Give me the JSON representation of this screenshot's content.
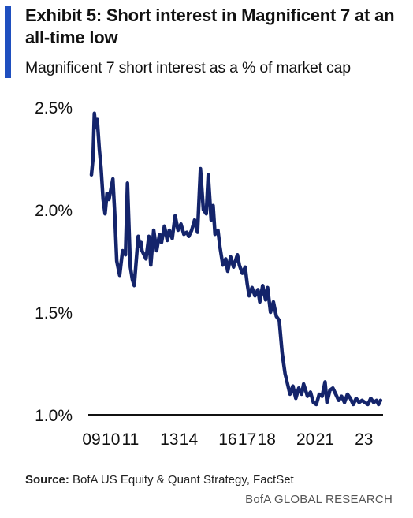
{
  "header": {
    "title": "Exhibit 5: Short interest in Magnificent 7 at an all-time low",
    "subtitle": "Magnificent 7 short interest as a % of market cap"
  },
  "footer": {
    "source_label": "Source:",
    "source_text": "BofA US Equity & Quant Strategy, FactSet",
    "brand": "BofA GLOBAL RESEARCH"
  },
  "colors": {
    "accent": "#1f4fbf",
    "series": "#14246b"
  },
  "chart_data": {
    "type": "line",
    "title": "",
    "xlabel": "",
    "ylabel": "",
    "ylim": [
      1.0,
      2.5
    ],
    "xlim": [
      2009,
      2023.9
    ],
    "grid": false,
    "legend": "none",
    "x_ticks": [
      2009,
      2010,
      2011,
      2013,
      2014,
      2016,
      2017,
      2018,
      2020,
      2021,
      2023
    ],
    "x_tick_labels": [
      "09",
      "10",
      "11",
      "13",
      "14",
      "16",
      "17",
      "18",
      "20",
      "21",
      "23"
    ],
    "y_ticks": [
      1.0,
      1.5,
      2.0,
      2.5
    ],
    "y_tick_labels": [
      "1.0%",
      "1.5%",
      "2.0%",
      "2.5%"
    ],
    "series": [
      {
        "name": "",
        "x": [
          2009.0,
          2009.08,
          2009.15,
          2009.22,
          2009.3,
          2009.4,
          2009.5,
          2009.6,
          2009.7,
          2009.8,
          2009.9,
          2010.0,
          2010.1,
          2010.2,
          2010.3,
          2010.45,
          2010.6,
          2010.75,
          2010.85,
          2011.0,
          2011.1,
          2011.2,
          2011.3,
          2011.4,
          2011.5,
          2011.55,
          2011.6,
          2011.7,
          2011.8,
          2011.95,
          2012.05,
          2012.2,
          2012.35,
          2012.5,
          2012.6,
          2012.75,
          2012.9,
          2013.0,
          2013.15,
          2013.3,
          2013.45,
          2013.6,
          2013.75,
          2013.9,
          2014.0,
          2014.15,
          2014.3,
          2014.45,
          2014.6,
          2014.75,
          2014.9,
          2015.0,
          2015.15,
          2015.25,
          2015.35,
          2015.5,
          2015.6,
          2015.75,
          2015.9,
          2016.0,
          2016.15,
          2016.3,
          2016.5,
          2016.6,
          2016.75,
          2016.9,
          2017.0,
          2017.1,
          2017.25,
          2017.4,
          2017.55,
          2017.65,
          2017.8,
          2017.95,
          2018.05,
          2018.2,
          2018.35,
          2018.5,
          2018.65,
          2018.8,
          2018.95,
          2019.05,
          2019.2,
          2019.35,
          2019.5,
          2019.65,
          2019.8,
          2019.9,
          2020.0,
          2020.1,
          2020.25,
          2020.4,
          2020.55,
          2020.7,
          2020.85,
          2021.0,
          2021.1,
          2021.25,
          2021.4,
          2021.55,
          2021.7,
          2021.85,
          2022.0,
          2022.15,
          2022.3,
          2022.45,
          2022.6,
          2022.75,
          2022.9,
          2023.05,
          2023.2,
          2023.35,
          2023.5,
          2023.65,
          2023.75,
          2023.85
        ],
        "values": [
          2.17,
          2.25,
          2.47,
          2.4,
          2.44,
          2.3,
          2.2,
          2.05,
          1.98,
          2.08,
          2.05,
          2.1,
          2.15,
          1.98,
          1.75,
          1.68,
          1.8,
          1.78,
          2.13,
          1.72,
          1.66,
          1.63,
          1.75,
          1.87,
          1.82,
          1.84,
          1.8,
          1.78,
          1.76,
          1.87,
          1.73,
          1.9,
          1.8,
          1.88,
          1.84,
          1.92,
          1.85,
          1.9,
          1.86,
          1.97,
          1.9,
          1.93,
          1.88,
          1.89,
          1.87,
          1.9,
          1.95,
          1.89,
          2.2,
          2.0,
          1.98,
          2.17,
          1.95,
          2.02,
          1.88,
          1.9,
          1.82,
          1.73,
          1.76,
          1.7,
          1.77,
          1.72,
          1.78,
          1.73,
          1.69,
          1.72,
          1.64,
          1.58,
          1.62,
          1.58,
          1.61,
          1.55,
          1.63,
          1.56,
          1.62,
          1.5,
          1.55,
          1.48,
          1.46,
          1.3,
          1.2,
          1.16,
          1.1,
          1.14,
          1.08,
          1.13,
          1.1,
          1.15,
          1.12,
          1.09,
          1.11,
          1.06,
          1.05,
          1.1,
          1.09,
          1.16,
          1.06,
          1.12,
          1.13,
          1.1,
          1.07,
          1.09,
          1.06,
          1.1,
          1.08,
          1.05,
          1.08,
          1.06,
          1.07,
          1.06,
          1.05,
          1.08,
          1.06,
          1.07,
          1.05,
          1.07
        ]
      }
    ]
  }
}
